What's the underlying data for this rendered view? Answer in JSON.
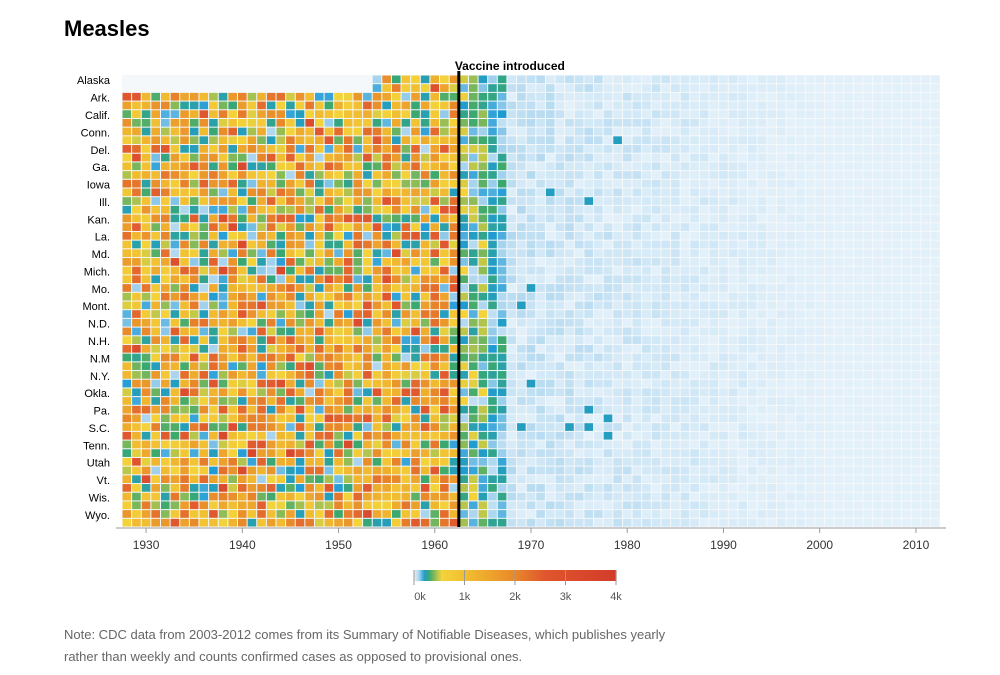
{
  "title": "Measles",
  "note": "Note: CDC data from 2003-2012 comes from its Summary of Notifiable Diseases, which publishes yearly rather than weekly and counts confirmed cases as opposed to provisional ones.",
  "chart_data": {
    "type": "heatmap",
    "title": "Measles",
    "row_labels": [
      "Alaska",
      "Ark.",
      "Calif.",
      "Conn.",
      "Del.",
      "Ga.",
      "Iowa",
      "Ill.",
      "Kan.",
      "La.",
      "Md.",
      "Mich.",
      "Mo.",
      "Mont.",
      "N.D.",
      "N.H.",
      "N.M",
      "N.Y.",
      "Okla.",
      "Pa.",
      "S.C.",
      "Tenn.",
      "Utah",
      "Vt.",
      "Wis.",
      "Wyo."
    ],
    "states_per_row": 2,
    "x_range": [
      1928,
      2012
    ],
    "x_ticks": [
      1930,
      1940,
      1950,
      1960,
      1970,
      1980,
      1990,
      2000,
      2010
    ],
    "x_tick_labels": [
      "1930",
      "1940",
      "1950",
      "1960",
      "1970",
      "1980",
      "1990",
      "2000",
      "2010"
    ],
    "annotation": {
      "label": "Vaccine introduced",
      "x": 1963
    },
    "legend": {
      "ticks": [
        0,
        1000,
        2000,
        3000,
        4000
      ],
      "tick_labels": [
        "0k",
        "1k",
        "2k",
        "3k",
        "4k"
      ],
      "stops": [
        {
          "value": 0,
          "color": "#e4f1fa"
        },
        {
          "value": 100,
          "color": "#a9d4ee"
        },
        {
          "value": 200,
          "color": "#1f9bd4"
        },
        {
          "value": 300,
          "color": "#3aa86e"
        },
        {
          "value": 550,
          "color": "#f4d33a"
        },
        {
          "value": 1200,
          "color": "#f0b52e"
        },
        {
          "value": 2000,
          "color": "#e8882a"
        },
        {
          "value": 2600,
          "color": "#e0562e"
        },
        {
          "value": 4000,
          "color": "#d23c2a"
        }
      ]
    },
    "colors": {
      "empty": "#ffffff",
      "line": "#000000"
    }
  }
}
